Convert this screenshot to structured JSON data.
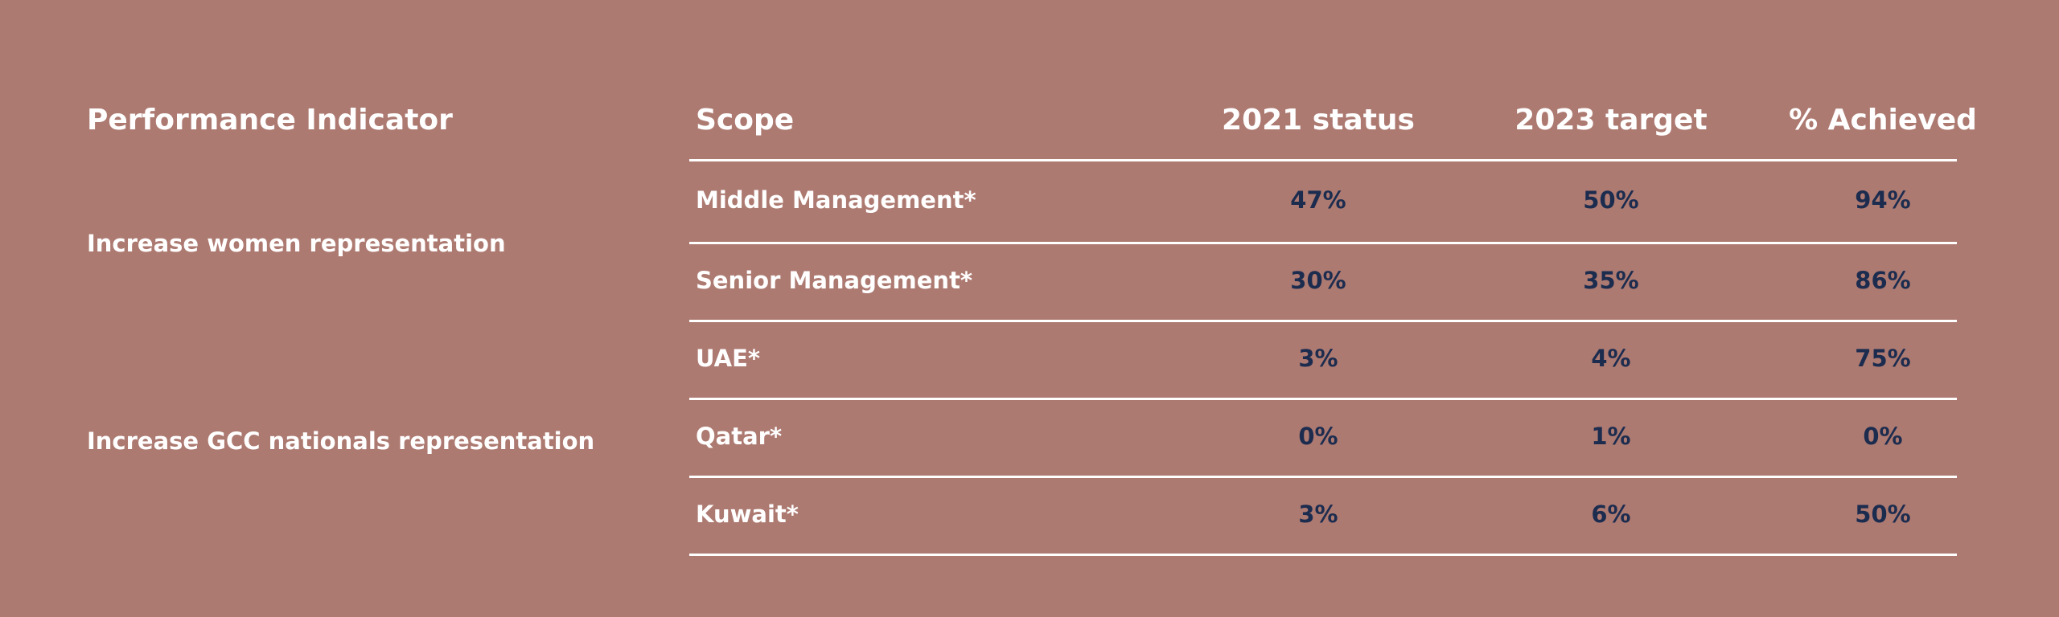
{
  "header": {
    "indicator": "Performance Indicator",
    "scope": "Scope",
    "status_2021": "2021 status",
    "target_2023": "2023 target",
    "achieved": "% Achieved"
  },
  "indicators": [
    "Increase women representation",
    "Increase GCC nationals representation"
  ],
  "rows": [
    {
      "scope": "Middle Management*",
      "status_2021": "47%",
      "target_2023": "50%",
      "achieved": "94%"
    },
    {
      "scope": "Senior Management*",
      "status_2021": "30%",
      "target_2023": "35%",
      "achieved": "86%"
    },
    {
      "scope": "UAE*",
      "status_2021": "3%",
      "target_2023": "4%",
      "achieved": "75%"
    },
    {
      "scope": "Qatar*",
      "status_2021": "0%",
      "target_2023": "1%",
      "achieved": "0%"
    },
    {
      "scope": "Kuwait*",
      "status_2021": "3%",
      "target_2023": "6%",
      "achieved": "50%"
    }
  ],
  "colors": {
    "background": "#ad7a71",
    "header_text": "#ffffff",
    "value_text": "#1c2c4f",
    "rule": "#ffffff"
  }
}
